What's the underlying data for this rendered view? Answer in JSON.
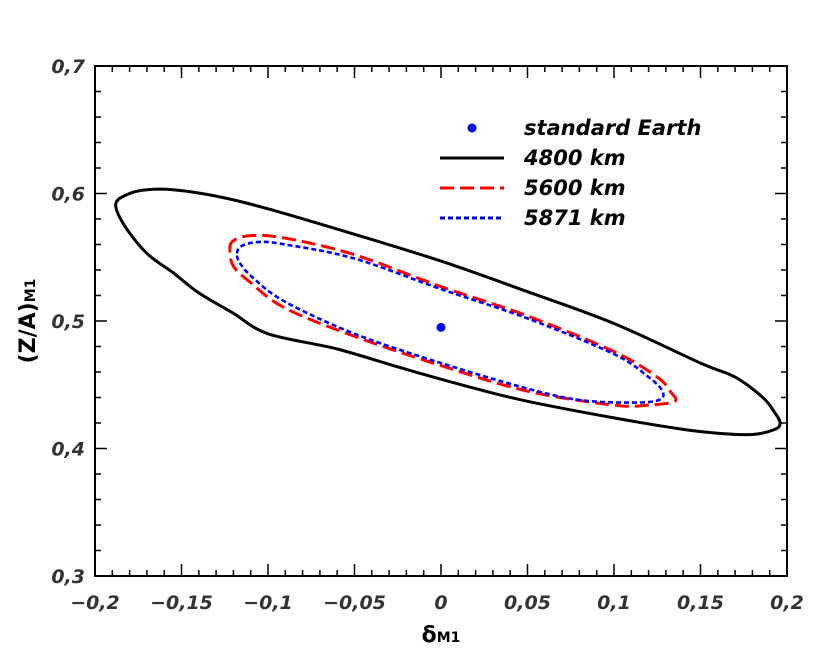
{
  "chart_data": {
    "type": "line",
    "xlim": [
      -0.2,
      0.2
    ],
    "ylim": [
      0.3,
      0.7
    ],
    "x_ticks": [
      -0.2,
      -0.15,
      -0.1,
      -0.05,
      0,
      0.05,
      0.1,
      0.15,
      0.2
    ],
    "x_tick_labels": [
      "−0,2",
      "−0,15",
      "−0,1",
      "−0,05",
      "0",
      "0,05",
      "0,1",
      "0,15",
      "0,2"
    ],
    "y_ticks": [
      0.3,
      0.4,
      0.5,
      0.6,
      0.7
    ],
    "y_tick_labels": [
      "0,3",
      "0,4",
      "0,5",
      "0,6",
      "0,7"
    ],
    "xlabel": {
      "main": "δ",
      "sub": "M1"
    },
    "ylabel": {
      "main": "(Z/A)",
      "sub": "M1"
    },
    "grid": false,
    "legend_position": "top-right",
    "legend": [
      {
        "label": "standard Earth",
        "marker": "dot",
        "color": "#0000ff"
      },
      {
        "label": "4800 km",
        "style": "solid",
        "color": "#000000"
      },
      {
        "label": "5600 km",
        "style": "dashed",
        "color": "#ff0000"
      },
      {
        "label": "5871 km",
        "style": "dotted",
        "color": "#0000ff"
      }
    ],
    "point": {
      "name": "standard Earth",
      "x": 0.0,
      "y": 0.495,
      "color": "#0000ff"
    },
    "series": [
      {
        "name": "4800 km",
        "style": "solid",
        "color": "#000000",
        "closed": true,
        "points": [
          [
            -0.188,
            0.592
          ],
          [
            -0.18,
            0.6
          ],
          [
            -0.17,
            0.603
          ],
          [
            -0.155,
            0.603
          ],
          [
            -0.13,
            0.598
          ],
          [
            -0.1,
            0.588
          ],
          [
            -0.05,
            0.568
          ],
          [
            0.0,
            0.547
          ],
          [
            0.05,
            0.523
          ],
          [
            0.1,
            0.498
          ],
          [
            0.15,
            0.467
          ],
          [
            0.17,
            0.456
          ],
          [
            0.186,
            0.44
          ],
          [
            0.193,
            0.428
          ],
          [
            0.196,
            0.42
          ],
          [
            0.193,
            0.415
          ],
          [
            0.18,
            0.411
          ],
          [
            0.16,
            0.412
          ],
          [
            0.14,
            0.415
          ],
          [
            0.1,
            0.424
          ],
          [
            0.05,
            0.437
          ],
          [
            0.02,
            0.447
          ],
          [
            -0.02,
            0.462
          ],
          [
            -0.06,
            0.478
          ],
          [
            -0.1,
            0.49
          ],
          [
            -0.12,
            0.506
          ],
          [
            -0.14,
            0.522
          ],
          [
            -0.155,
            0.538
          ],
          [
            -0.17,
            0.553
          ],
          [
            -0.183,
            0.575
          ]
        ]
      },
      {
        "name": "5600 km",
        "style": "dashed",
        "color": "#ff0000",
        "closed": true,
        "points": [
          [
            -0.122,
            0.556
          ],
          [
            -0.12,
            0.563
          ],
          [
            -0.11,
            0.567
          ],
          [
            -0.09,
            0.565
          ],
          [
            -0.05,
            0.552
          ],
          [
            0.0,
            0.527
          ],
          [
            0.05,
            0.504
          ],
          [
            0.1,
            0.476
          ],
          [
            0.125,
            0.456
          ],
          [
            0.133,
            0.444
          ],
          [
            0.135,
            0.437
          ],
          [
            0.12,
            0.434
          ],
          [
            0.1,
            0.434
          ],
          [
            0.05,
            0.445
          ],
          [
            0.0,
            0.465
          ],
          [
            -0.05,
            0.488
          ],
          [
            -0.09,
            0.51
          ],
          [
            -0.11,
            0.53
          ],
          [
            -0.12,
            0.543
          ]
        ]
      },
      {
        "name": "5871 km",
        "style": "dotted",
        "color": "#0000ff",
        "closed": true,
        "points": [
          [
            -0.118,
            0.553
          ],
          [
            -0.115,
            0.559
          ],
          [
            -0.105,
            0.562
          ],
          [
            -0.09,
            0.56
          ],
          [
            -0.05,
            0.549
          ],
          [
            0.0,
            0.525
          ],
          [
            0.05,
            0.502
          ],
          [
            0.1,
            0.474
          ],
          [
            0.12,
            0.456
          ],
          [
            0.128,
            0.445
          ],
          [
            0.126,
            0.438
          ],
          [
            0.11,
            0.436
          ],
          [
            0.08,
            0.438
          ],
          [
            0.05,
            0.447
          ],
          [
            0.0,
            0.467
          ],
          [
            -0.05,
            0.49
          ],
          [
            -0.09,
            0.515
          ],
          [
            -0.108,
            0.533
          ],
          [
            -0.116,
            0.545
          ]
        ]
      }
    ]
  }
}
